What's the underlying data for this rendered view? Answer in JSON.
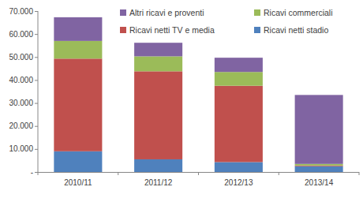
{
  "chart_data": {
    "type": "bar",
    "stacked": true,
    "grid": false,
    "legend": "top",
    "categories": [
      "2010/11",
      "2011/12",
      "2012/13",
      "2013/14"
    ],
    "series": [
      {
        "name": "Ricavi netti stadio",
        "color": "#4f81bd",
        "values": [
          9000,
          5500,
          4300,
          2500
        ]
      },
      {
        "name": "Ricavi netti TV e media",
        "color": "#c0504d",
        "values": [
          40300,
          38300,
          33200,
          300
        ]
      },
      {
        "name": "Ricavi commerciali",
        "color": "#9bbb59",
        "values": [
          7700,
          6500,
          6000,
          700
        ]
      },
      {
        "name": "Altri ricavi e proventi",
        "color": "#8064a2",
        "values": [
          10300,
          5900,
          6200,
          30000
        ]
      }
    ],
    "ylim": [
      0,
      70000
    ],
    "yticks": [
      {
        "value": 0,
        "label": "-"
      },
      {
        "value": 10000,
        "label": "10.000"
      },
      {
        "value": 20000,
        "label": "20.000"
      },
      {
        "value": 30000,
        "label": "30.000"
      },
      {
        "value": 40000,
        "label": "40.000"
      },
      {
        "value": 50000,
        "label": "50.000"
      },
      {
        "value": 60000,
        "label": "60.000"
      },
      {
        "value": 70000,
        "label": "70.000"
      }
    ]
  }
}
